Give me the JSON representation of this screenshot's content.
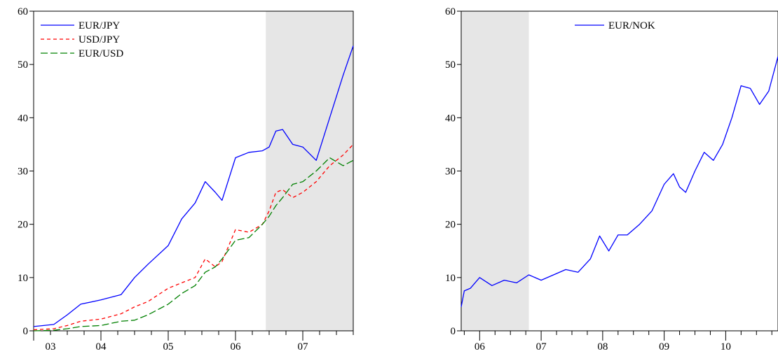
{
  "chart_data": [
    {
      "type": "line",
      "title": "",
      "xlabel": "",
      "ylabel": "",
      "ylim": [
        0,
        60
      ],
      "xlim": [
        2003.0,
        2007.75
      ],
      "yticks": [
        "0",
        "10",
        "20",
        "30",
        "40",
        "50",
        "60"
      ],
      "xticks": [
        {
          "label": "03",
          "value": 2003.25
        },
        {
          "label": "04",
          "value": 2004.0
        },
        {
          "label": "05",
          "value": 2005.0
        },
        {
          "label": "06",
          "value": 2006.0
        },
        {
          "label": "07",
          "value": 2007.0
        }
      ],
      "shaded": [
        2006.45,
        2007.75
      ],
      "legend_position": "top-left",
      "series": [
        {
          "name": "EUR/JPY",
          "color": "#0000ff",
          "dash": "solid",
          "x": [
            2003.0,
            2003.3,
            2003.5,
            2003.7,
            2004.0,
            2004.3,
            2004.5,
            2004.7,
            2005.0,
            2005.2,
            2005.4,
            2005.55,
            2005.7,
            2005.8,
            2006.0,
            2006.2,
            2006.4,
            2006.5,
            2006.6,
            2006.7,
            2006.85,
            2007.0,
            2007.2,
            2007.4,
            2007.6,
            2007.75
          ],
          "y": [
            0.8,
            1.2,
            3.0,
            5.0,
            5.8,
            6.8,
            10.0,
            12.5,
            16.0,
            21.0,
            24.0,
            28.0,
            26.0,
            24.5,
            32.5,
            33.5,
            33.8,
            34.5,
            37.5,
            37.8,
            35.0,
            34.5,
            32.0,
            40.0,
            48.0,
            53.5
          ]
        },
        {
          "name": "USD/JPY",
          "color": "#ff0000",
          "dash": "5,4",
          "x": [
            2003.0,
            2003.3,
            2003.5,
            2003.7,
            2004.0,
            2004.3,
            2004.5,
            2004.7,
            2005.0,
            2005.2,
            2005.4,
            2005.55,
            2005.7,
            2005.8,
            2006.0,
            2006.2,
            2006.4,
            2006.5,
            2006.6,
            2006.7,
            2006.85,
            2007.0,
            2007.2,
            2007.4,
            2007.6,
            2007.75
          ],
          "y": [
            0.2,
            0.4,
            1.0,
            1.8,
            2.2,
            3.2,
            4.5,
            5.5,
            8.0,
            9.0,
            10.0,
            13.5,
            12.0,
            13.0,
            19.0,
            18.5,
            20.0,
            22.5,
            26.0,
            26.5,
            25.0,
            26.0,
            28.0,
            31.0,
            33.0,
            35.0
          ]
        },
        {
          "name": "EUR/USD",
          "color": "#008000",
          "dash": "10,4",
          "x": [
            2003.0,
            2003.3,
            2003.5,
            2003.7,
            2004.0,
            2004.3,
            2004.5,
            2004.7,
            2005.0,
            2005.2,
            2005.4,
            2005.55,
            2005.7,
            2005.8,
            2006.0,
            2006.2,
            2006.4,
            2006.5,
            2006.6,
            2006.7,
            2006.85,
            2007.0,
            2007.2,
            2007.4,
            2007.6,
            2007.75
          ],
          "y": [
            0.0,
            0.1,
            0.4,
            0.8,
            1.0,
            1.8,
            2.0,
            3.0,
            5.0,
            7.0,
            8.5,
            11.0,
            12.0,
            13.5,
            17.0,
            17.5,
            20.0,
            21.5,
            23.5,
            25.0,
            27.5,
            28.0,
            30.0,
            32.5,
            31.0,
            32.0
          ]
        }
      ]
    },
    {
      "type": "line",
      "title": "",
      "xlabel": "",
      "ylabel": "",
      "ylim": [
        0,
        60
      ],
      "xlim": [
        2005.7,
        2010.85
      ],
      "yticks": [
        "0",
        "10",
        "20",
        "30",
        "40",
        "50",
        "60"
      ],
      "xticks": [
        {
          "label": "06",
          "value": 2006.0
        },
        {
          "label": "07",
          "value": 2007.0
        },
        {
          "label": "08",
          "value": 2008.0
        },
        {
          "label": "09",
          "value": 2009.0
        },
        {
          "label": "10",
          "value": 2010.0
        }
      ],
      "shaded": [
        2005.7,
        2006.8
      ],
      "legend_position": "top-center",
      "series": [
        {
          "name": "EUR/NOK",
          "color": "#0000ff",
          "dash": "solid",
          "x": [
            2005.7,
            2005.75,
            2005.85,
            2006.0,
            2006.2,
            2006.4,
            2006.6,
            2006.8,
            2007.0,
            2007.2,
            2007.4,
            2007.6,
            2007.8,
            2007.95,
            2008.1,
            2008.25,
            2008.4,
            2008.6,
            2008.8,
            2009.0,
            2009.15,
            2009.25,
            2009.35,
            2009.5,
            2009.65,
            2009.8,
            2009.95,
            2010.1,
            2010.25,
            2010.4,
            2010.55,
            2010.7,
            2010.85
          ],
          "y": [
            4.5,
            7.5,
            8.0,
            10.0,
            8.5,
            9.5,
            9.0,
            10.5,
            9.5,
            10.5,
            11.5,
            11.0,
            13.5,
            17.8,
            15.0,
            18.0,
            18.0,
            20.0,
            22.5,
            27.5,
            29.5,
            27.0,
            26.0,
            30.0,
            33.5,
            32.0,
            35.0,
            40.0,
            46.0,
            45.5,
            42.5,
            45.0,
            51.5
          ]
        }
      ]
    }
  ]
}
